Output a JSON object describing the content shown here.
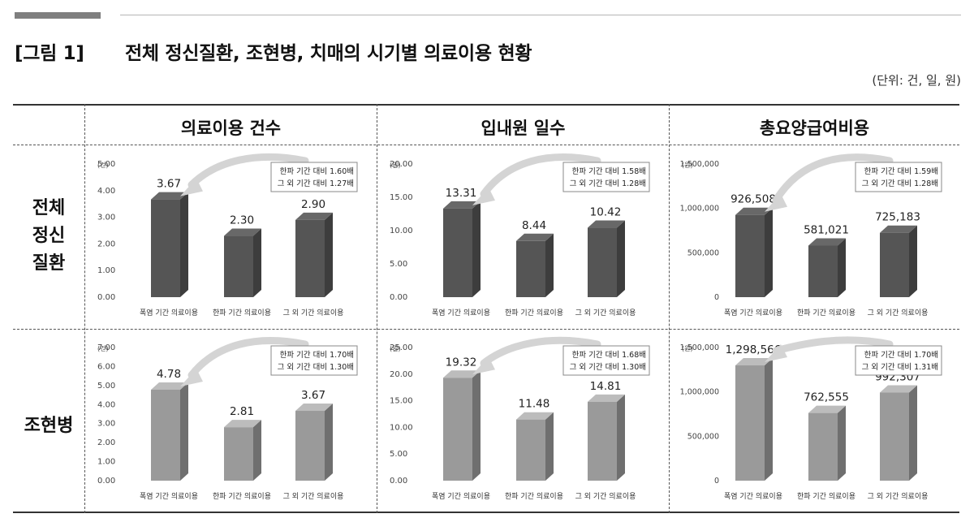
{
  "figure": {
    "number": "[그림 1]",
    "title": "전체 정신질환, 조현병, 치매의 시기별 의료이용 현황",
    "unit_note": "(단위: 건, 일, 원)"
  },
  "columns": [
    "의료이용 건수",
    "입내원 일수",
    "총요양급여비용"
  ],
  "rows": [
    {
      "lines": [
        "전체",
        "정신",
        "질환"
      ]
    },
    {
      "lines": [
        "조현병"
      ]
    }
  ],
  "colors": {
    "dark_bar": "#555555",
    "light_bar": "#9a9a9a",
    "rule": "#333333"
  },
  "chart_data": [
    {
      "type": "bar",
      "row": "전체 정신질환",
      "column": "의료이용 건수",
      "categories": [
        "폭염 기간 의료이용",
        "한파 기간 의료이용",
        "그 외 기간 의료이용"
      ],
      "values": [
        3.67,
        2.3,
        2.9
      ],
      "value_labels": [
        "3.67",
        "2.30",
        "2.90"
      ],
      "yunit": "(건)",
      "ylim": [
        0,
        5
      ],
      "yticks": [
        "0.00",
        "1.00",
        "2.00",
        "3.00",
        "4.00",
        "5.00"
      ],
      "annotation": [
        "한파 기간 대비 1.60배",
        "그 외 기간 대비 1.27배"
      ],
      "tone": "dark"
    },
    {
      "type": "bar",
      "row": "전체 정신질환",
      "column": "입내원 일수",
      "categories": [
        "폭염 기간 의료이용",
        "한파 기간 의료이용",
        "그 외 기간 의료이용"
      ],
      "values": [
        13.31,
        8.44,
        10.42
      ],
      "value_labels": [
        "13.31",
        "8.44",
        "10.42"
      ],
      "yunit": "(일)",
      "ylim": [
        0,
        20
      ],
      "yticks": [
        "0.00",
        "5.00",
        "10.00",
        "15.00",
        "20.00"
      ],
      "annotation": [
        "한파 기간 대비 1.58배",
        "그 외 기간 대비 1.28배"
      ],
      "tone": "dark"
    },
    {
      "type": "bar",
      "row": "전체 정신질환",
      "column": "총요양급여비용",
      "categories": [
        "폭염 기간 의료이용",
        "한파 기간 의료이용",
        "그 외 기간 의료이용"
      ],
      "values": [
        926508,
        581021,
        725183
      ],
      "value_labels": [
        "926,508",
        "581,021",
        "725,183"
      ],
      "yunit": "(원)",
      "ylim": [
        0,
        1500000
      ],
      "yticks": [
        "0",
        "500,000",
        "1,000,000",
        "1,500,000"
      ],
      "annotation": [
        "한파 기간 대비 1.59배",
        "그 외 기간 대비 1.28배"
      ],
      "tone": "dark"
    },
    {
      "type": "bar",
      "row": "조현병",
      "column": "의료이용 건수",
      "categories": [
        "폭염 기간 의료이용",
        "한파 기간 의료이용",
        "그 외 기간 의료이용"
      ],
      "values": [
        4.78,
        2.81,
        3.67
      ],
      "value_labels": [
        "4.78",
        "2.81",
        "3.67"
      ],
      "yunit": "(건)",
      "ylim": [
        0,
        7
      ],
      "yticks": [
        "0.00",
        "1.00",
        "2.00",
        "3.00",
        "4.00",
        "5.00",
        "6.00",
        "7.00"
      ],
      "annotation": [
        "한파 기간 대비 1.70배",
        "그 외 기간 대비 1.30배"
      ],
      "tone": "light"
    },
    {
      "type": "bar",
      "row": "조현병",
      "column": "입내원 일수",
      "categories": [
        "폭염 기간 의료이용",
        "한파 기간 의료이용",
        "그 외 기간 의료이용"
      ],
      "values": [
        19.32,
        11.48,
        14.81
      ],
      "value_labels": [
        "19.32",
        "11.48",
        "14.81"
      ],
      "yunit": "(일)",
      "ylim": [
        0,
        25
      ],
      "yticks": [
        "0.00",
        "5.00",
        "10.00",
        "15.00",
        "20.00",
        "25.00"
      ],
      "annotation": [
        "한파 기간 대비 1.68배",
        "그 외 기간 대비 1.30배"
      ],
      "tone": "light"
    },
    {
      "type": "bar",
      "row": "조현병",
      "column": "총요양급여비용",
      "categories": [
        "폭염 기간 의료이용",
        "한파 기간 의료이용",
        "그 외 기간 의료이용"
      ],
      "values": [
        1298566,
        762555,
        992307
      ],
      "value_labels": [
        "1,298,566",
        "762,555",
        "992,307"
      ],
      "yunit": "(원)",
      "ylim": [
        0,
        1500000
      ],
      "yticks": [
        "0",
        "500,000",
        "1,000,000",
        "1,500,000"
      ],
      "annotation": [
        "한파 기간 대비 1.70배",
        "그 외 기간 대비 1.31배"
      ],
      "tone": "light"
    }
  ]
}
